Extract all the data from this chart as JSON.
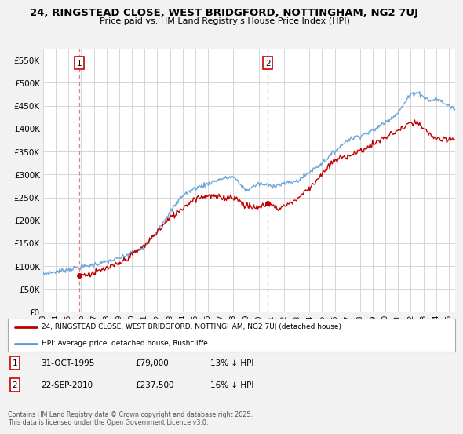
{
  "title": "24, RINGSTEAD CLOSE, WEST BRIDGFORD, NOTTINGHAM, NG2 7UJ",
  "subtitle": "Price paid vs. HM Land Registry's House Price Index (HPI)",
  "ytick_values": [
    0,
    50000,
    100000,
    150000,
    200000,
    250000,
    300000,
    350000,
    400000,
    450000,
    500000,
    550000
  ],
  "ylim": [
    0,
    575000
  ],
  "xlim_start": 1993.0,
  "xlim_end": 2025.5,
  "hpi_color": "#5b9bd5",
  "price_color": "#c00000",
  "dashed_color": "#e06060",
  "background_color": "#f2f2f2",
  "marker1_x": 1995.83,
  "marker1_y": 79000,
  "marker1_label": "1",
  "marker2_x": 2010.72,
  "marker2_y": 237500,
  "marker2_label": "2",
  "legend_line1": "24, RINGSTEAD CLOSE, WEST BRIDGFORD, NOTTINGHAM, NG2 7UJ (detached house)",
  "legend_line2": "HPI: Average price, detached house, Rushcliffe",
  "note1_label": "1",
  "note1_date": "31-OCT-1995",
  "note1_price": "£79,000",
  "note1_hpi": "13% ↓ HPI",
  "note2_label": "2",
  "note2_date": "22-SEP-2010",
  "note2_price": "£237,500",
  "note2_hpi": "16% ↓ HPI",
  "copyright": "Contains HM Land Registry data © Crown copyright and database right 2025.\nThis data is licensed under the Open Government Licence v3.0.",
  "xtick_years": [
    1993,
    1994,
    1995,
    1996,
    1997,
    1998,
    1999,
    2000,
    2001,
    2002,
    2003,
    2004,
    2005,
    2006,
    2007,
    2008,
    2009,
    2010,
    2011,
    2012,
    2013,
    2014,
    2015,
    2016,
    2017,
    2018,
    2019,
    2020,
    2021,
    2022,
    2023,
    2024,
    2025
  ]
}
